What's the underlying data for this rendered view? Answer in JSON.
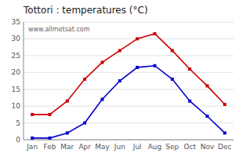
{
  "chart_data": {
    "type": "line",
    "title": "Tottori : temperatures (°C)",
    "annotations": [
      "www.allmetsat.com"
    ],
    "categories": [
      "Jan",
      "Feb",
      "Mar",
      "Apr",
      "May",
      "Jun",
      "Jul",
      "Aug",
      "Sep",
      "Oct",
      "Nov",
      "Dec"
    ],
    "series": [
      {
        "color": "#cc0000",
        "marker": "square",
        "values": [
          7.5,
          7.5,
          11.5,
          18.0,
          23.0,
          26.5,
          30.0,
          31.5,
          26.5,
          21.0,
          16.0,
          10.5
        ]
      },
      {
        "color": "#0000cc",
        "marker": "square",
        "values": [
          0.5,
          0.5,
          2.0,
          5.0,
          12.0,
          17.5,
          21.5,
          22.0,
          18.0,
          11.5,
          7.0,
          2.0
        ]
      }
    ],
    "ylim": [
      0,
      35
    ],
    "yticks": [
      0,
      5,
      10,
      15,
      20,
      25,
      30,
      35
    ],
    "grid": true
  }
}
